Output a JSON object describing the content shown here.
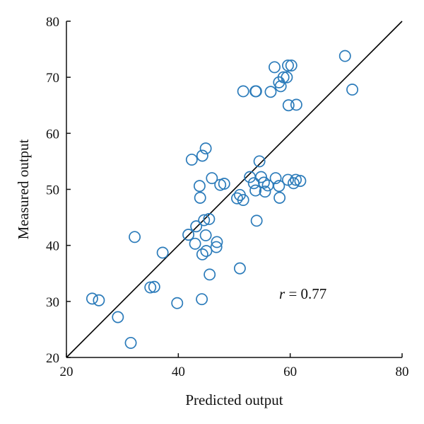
{
  "chart_data": {
    "type": "scatter",
    "title": "",
    "xlabel": "Predicted output",
    "ylabel": "Measured output",
    "xlim": [
      20,
      80
    ],
    "ylim": [
      20,
      80
    ],
    "xticks": [
      20,
      40,
      60,
      80
    ],
    "yticks": [
      20,
      30,
      40,
      50,
      60,
      70,
      80
    ],
    "grid": false,
    "legend": "none",
    "marker": "open-circle",
    "marker_color": "#2b7bba",
    "reference_line": {
      "from": [
        20,
        20
      ],
      "to": [
        80,
        80
      ],
      "color": "#000000"
    },
    "annotation": {
      "symbol": "r",
      "text": " = 0.77"
    },
    "series": [
      {
        "x": [
          24.6,
          25.8,
          29.2,
          31.5,
          35.0,
          35.7,
          37.2,
          39.8,
          32.2,
          41.8,
          43.0,
          43.2,
          44.3,
          44.6,
          44.9,
          45.0,
          45.5,
          45.6,
          46.9,
          46.8,
          44.2,
          42.4,
          43.9,
          43.8,
          44.3,
          44.9,
          46.0,
          47.5,
          48.2,
          50.5,
          51.0,
          51.6,
          51.0,
          52.8,
          53.5,
          53.8,
          54.0,
          54.5,
          54.8,
          55.3,
          55.5,
          56.0,
          57.4,
          58.0,
          58.1,
          59.6,
          60.6,
          61.0,
          61.8,
          53.8,
          51.6,
          53.9,
          56.5,
          57.2,
          58.0,
          58.3,
          58.8,
          59.4,
          59.7,
          59.6,
          61.1,
          60.2,
          69.8,
          71.1
        ],
        "y": [
          30.5,
          30.2,
          27.2,
          22.6,
          32.5,
          32.6,
          38.7,
          29.7,
          41.5,
          41.9,
          40.3,
          43.4,
          38.4,
          44.5,
          41.8,
          39.0,
          44.7,
          34.8,
          40.6,
          39.7,
          30.4,
          55.3,
          48.5,
          50.6,
          56.0,
          57.3,
          52.0,
          50.8,
          51.0,
          48.4,
          49.0,
          48.1,
          35.9,
          52.2,
          51.1,
          49.8,
          44.4,
          55.0,
          52.2,
          51.2,
          49.6,
          50.7,
          52.0,
          50.6,
          48.5,
          51.7,
          51.1,
          51.7,
          51.5,
          67.5,
          67.5,
          67.5,
          67.4,
          71.8,
          69.1,
          68.4,
          70.0,
          70.0,
          65.0,
          72.1,
          65.1,
          72.1,
          73.8,
          67.8
        ]
      }
    ]
  }
}
